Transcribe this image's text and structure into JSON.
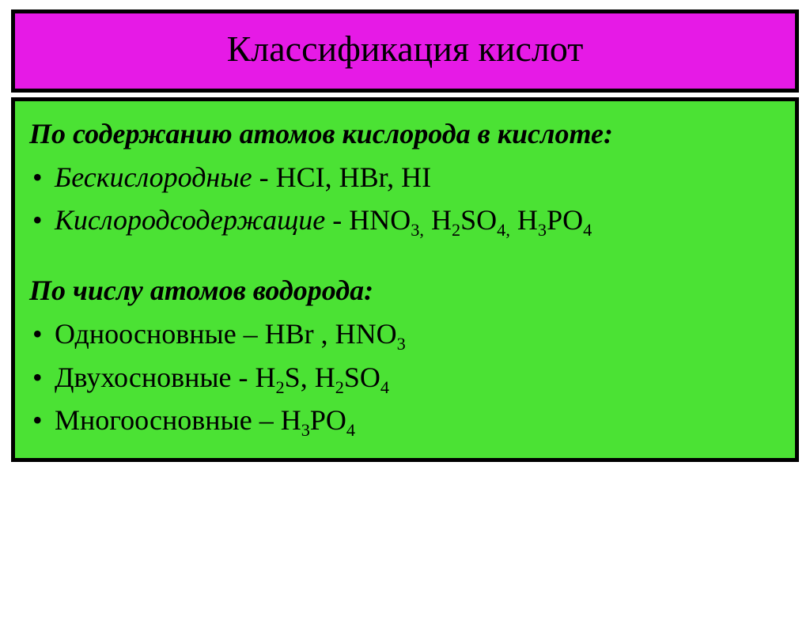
{
  "title": "Классификация кислот",
  "section1": {
    "heading": "По содержанию атомов кислорода в кислоте:",
    "item1_label": "Бескислородные",
    "item1_rest": " - HCI, HBr, HI",
    "item2_label": "Кислородсодержащие",
    "item2_prefix": " - HNO",
    "item2_s1": "3,",
    "item2_m1": " H",
    "item2_s2": "2",
    "item2_m2": "SO",
    "item2_s3": "4,",
    "item2_m3": " H",
    "item2_s4": "3",
    "item2_m4": "PO",
    "item2_s5": "4"
  },
  "section2": {
    "heading": "По числу атомов водорода:",
    "item1_text": "Одноосновные – HBr , HNO",
    "item1_s1": "3",
    "item2_pre": "Двухосновные - H",
    "item2_s1": "2",
    "item2_m1": "S, H",
    "item2_s2": "2",
    "item2_m2": "SO",
    "item2_s3": "4",
    "item3_pre": "Многоосновные – H",
    "item3_s1": "3",
    "item3_m1": "PO",
    "item3_s2": "4"
  },
  "colors": {
    "title_bg": "#e61ae6",
    "content_bg": "#4be234",
    "border": "#000000",
    "text": "#000000"
  }
}
